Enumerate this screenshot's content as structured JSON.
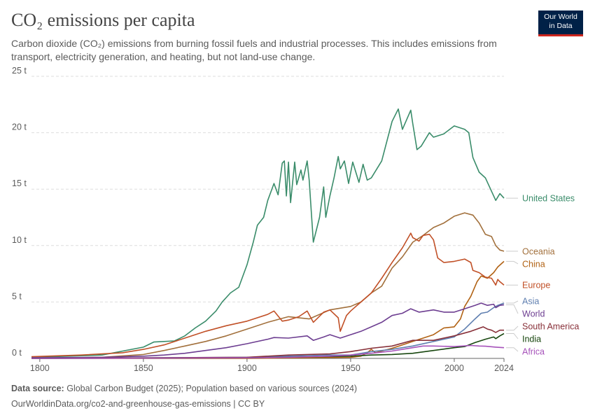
{
  "title": "CO₂ emissions per capita",
  "subtitle": "Carbon dioxide (CO₂) emissions from burning fossil fuels and industrial processes. This includes emissions from transport, electricity generation, and heating, but not land-use change.",
  "logo": {
    "line1": "Our World",
    "line2": "in Data"
  },
  "footer": {
    "source_label": "Data source:",
    "source_text": "Global Carbon Budget (2025); Population based on various sources (2024)",
    "url": "OurWorldinData.org/co2-and-greenhouse-gas-emissions | CC BY"
  },
  "colors": {
    "grid": "#dddddd",
    "text": "#5b5b5b",
    "axis": "#666666"
  },
  "chart_data": {
    "type": "line",
    "title": "CO₂ emissions per capita",
    "xlabel": "",
    "ylabel": "",
    "xlim": [
      1796,
      2024
    ],
    "ylim": [
      0,
      25
    ],
    "x_ticks": [
      1800,
      1850,
      1900,
      1950,
      2000,
      2024
    ],
    "x_tick_labels": [
      "1800",
      "1850",
      "1900",
      "1950",
      "2000",
      "2024"
    ],
    "y_ticks": [
      0,
      5,
      10,
      15,
      20,
      25
    ],
    "y_tick_labels": [
      "0 t",
      "5 t",
      "10 t",
      "15 t",
      "20 t",
      "25 t"
    ],
    "grid": true,
    "series": [
      {
        "name": "United States",
        "color": "#3a8c6a",
        "points": [
          [
            1796,
            0.1
          ],
          [
            1830,
            0.3
          ],
          [
            1850,
            1.0
          ],
          [
            1855,
            1.45
          ],
          [
            1860,
            1.5
          ],
          [
            1865,
            1.55
          ],
          [
            1870,
            2.0
          ],
          [
            1875,
            2.7
          ],
          [
            1880,
            3.3
          ],
          [
            1885,
            4.2
          ],
          [
            1888,
            5.0
          ],
          [
            1892,
            5.8
          ],
          [
            1896,
            6.3
          ],
          [
            1900,
            8.3
          ],
          [
            1903,
            10.3
          ],
          [
            1905,
            11.8
          ],
          [
            1908,
            12.5
          ],
          [
            1910,
            14.0
          ],
          [
            1913,
            15.5
          ],
          [
            1915,
            14.5
          ],
          [
            1917,
            17.3
          ],
          [
            1918,
            17.5
          ],
          [
            1919,
            14.4
          ],
          [
            1920,
            17.4
          ],
          [
            1921,
            13.8
          ],
          [
            1923,
            17.4
          ],
          [
            1924,
            15.4
          ],
          [
            1926,
            16.7
          ],
          [
            1927,
            15.8
          ],
          [
            1929,
            17.5
          ],
          [
            1930,
            15.8
          ],
          [
            1932,
            10.3
          ],
          [
            1935,
            12.5
          ],
          [
            1937,
            15.2
          ],
          [
            1938,
            12.5
          ],
          [
            1940,
            14.4
          ],
          [
            1942,
            16.0
          ],
          [
            1944,
            17.9
          ],
          [
            1945,
            16.8
          ],
          [
            1947,
            17.5
          ],
          [
            1949,
            15.5
          ],
          [
            1951,
            17.4
          ],
          [
            1954,
            15.6
          ],
          [
            1956,
            17.2
          ],
          [
            1958,
            15.8
          ],
          [
            1960,
            16.0
          ],
          [
            1965,
            17.5
          ],
          [
            1970,
            21.0
          ],
          [
            1973,
            22.1
          ],
          [
            1975,
            20.3
          ],
          [
            1979,
            22.0
          ],
          [
            1980,
            20.8
          ],
          [
            1982,
            18.5
          ],
          [
            1984,
            18.8
          ],
          [
            1988,
            20.0
          ],
          [
            1990,
            19.6
          ],
          [
            1995,
            19.9
          ],
          [
            2000,
            20.6
          ],
          [
            2005,
            20.3
          ],
          [
            2007,
            20.0
          ],
          [
            2009,
            17.8
          ],
          [
            2012,
            16.5
          ],
          [
            2015,
            16.0
          ],
          [
            2020,
            14.0
          ],
          [
            2022,
            14.6
          ],
          [
            2024,
            14.2
          ]
        ]
      },
      {
        "name": "Oceania",
        "color": "#a2703c",
        "points": [
          [
            1796,
            0.0
          ],
          [
            1830,
            0.1
          ],
          [
            1850,
            0.35
          ],
          [
            1860,
            0.7
          ],
          [
            1870,
            1.1
          ],
          [
            1880,
            1.5
          ],
          [
            1890,
            2.0
          ],
          [
            1900,
            2.6
          ],
          [
            1910,
            3.2
          ],
          [
            1920,
            3.7
          ],
          [
            1930,
            3.5
          ],
          [
            1940,
            4.3
          ],
          [
            1950,
            4.6
          ],
          [
            1955,
            5.0
          ],
          [
            1960,
            5.8
          ],
          [
            1965,
            6.4
          ],
          [
            1970,
            8.0
          ],
          [
            1975,
            9.0
          ],
          [
            1980,
            10.3
          ],
          [
            1985,
            10.9
          ],
          [
            1990,
            11.6
          ],
          [
            1995,
            12.0
          ],
          [
            2000,
            12.6
          ],
          [
            2005,
            12.9
          ],
          [
            2009,
            12.7
          ],
          [
            2012,
            12.0
          ],
          [
            2015,
            11.0
          ],
          [
            2018,
            10.8
          ],
          [
            2020,
            10.0
          ],
          [
            2022,
            9.6
          ],
          [
            2024,
            9.5
          ]
        ]
      },
      {
        "name": "China",
        "color": "#b16214",
        "points": [
          [
            1796,
            0.0
          ],
          [
            1900,
            0.0
          ],
          [
            1950,
            0.1
          ],
          [
            1955,
            0.2
          ],
          [
            1958,
            0.5
          ],
          [
            1960,
            0.8
          ],
          [
            1962,
            0.5
          ],
          [
            1970,
            0.9
          ],
          [
            1975,
            1.2
          ],
          [
            1980,
            1.5
          ],
          [
            1985,
            1.8
          ],
          [
            1990,
            2.1
          ],
          [
            1995,
            2.7
          ],
          [
            2000,
            2.8
          ],
          [
            2003,
            3.5
          ],
          [
            2005,
            4.6
          ],
          [
            2008,
            5.5
          ],
          [
            2011,
            6.8
          ],
          [
            2013,
            7.3
          ],
          [
            2016,
            7.1
          ],
          [
            2019,
            7.6
          ],
          [
            2021,
            8.1
          ],
          [
            2024,
            8.6
          ]
        ]
      },
      {
        "name": "Europe",
        "color": "#c15027",
        "points": [
          [
            1796,
            0.15
          ],
          [
            1820,
            0.3
          ],
          [
            1840,
            0.5
          ],
          [
            1850,
            0.8
          ],
          [
            1860,
            1.2
          ],
          [
            1870,
            1.8
          ],
          [
            1880,
            2.4
          ],
          [
            1890,
            2.9
          ],
          [
            1900,
            3.3
          ],
          [
            1910,
            3.9
          ],
          [
            1913,
            4.2
          ],
          [
            1917,
            3.3
          ],
          [
            1920,
            3.4
          ],
          [
            1925,
            3.7
          ],
          [
            1929,
            4.2
          ],
          [
            1932,
            3.2
          ],
          [
            1937,
            4.1
          ],
          [
            1940,
            4.3
          ],
          [
            1944,
            3.6
          ],
          [
            1945,
            2.4
          ],
          [
            1948,
            3.8
          ],
          [
            1950,
            4.2
          ],
          [
            1955,
            5.0
          ],
          [
            1960,
            5.8
          ],
          [
            1965,
            7.1
          ],
          [
            1970,
            8.5
          ],
          [
            1975,
            9.8
          ],
          [
            1979,
            11.1
          ],
          [
            1980,
            10.7
          ],
          [
            1983,
            10.4
          ],
          [
            1985,
            10.9
          ],
          [
            1988,
            11.0
          ],
          [
            1990,
            10.5
          ],
          [
            1992,
            8.9
          ],
          [
            1995,
            8.5
          ],
          [
            2000,
            8.6
          ],
          [
            2005,
            8.8
          ],
          [
            2008,
            8.5
          ],
          [
            2009,
            7.8
          ],
          [
            2012,
            7.6
          ],
          [
            2015,
            7.2
          ],
          [
            2018,
            7.1
          ],
          [
            2020,
            6.5
          ],
          [
            2021,
            7.0
          ],
          [
            2022,
            6.8
          ],
          [
            2024,
            6.5
          ]
        ]
      },
      {
        "name": "Asia",
        "color": "#5f7fb0",
        "points": [
          [
            1796,
            0.0
          ],
          [
            1900,
            0.1
          ],
          [
            1920,
            0.2
          ],
          [
            1940,
            0.3
          ],
          [
            1950,
            0.3
          ],
          [
            1960,
            0.6
          ],
          [
            1970,
            0.8
          ],
          [
            1980,
            1.1
          ],
          [
            1990,
            1.5
          ],
          [
            2000,
            1.9
          ],
          [
            2005,
            2.6
          ],
          [
            2010,
            3.5
          ],
          [
            2013,
            4.0
          ],
          [
            2016,
            4.1
          ],
          [
            2019,
            4.5
          ],
          [
            2021,
            4.7
          ],
          [
            2024,
            4.9
          ]
        ]
      },
      {
        "name": "World",
        "color": "#6d3e91",
        "points": [
          [
            1796,
            0.06
          ],
          [
            1830,
            0.1
          ],
          [
            1850,
            0.2
          ],
          [
            1860,
            0.3
          ],
          [
            1870,
            0.45
          ],
          [
            1880,
            0.7
          ],
          [
            1890,
            0.95
          ],
          [
            1900,
            1.3
          ],
          [
            1910,
            1.7
          ],
          [
            1913,
            1.85
          ],
          [
            1920,
            1.8
          ],
          [
            1929,
            2.0
          ],
          [
            1932,
            1.6
          ],
          [
            1937,
            1.9
          ],
          [
            1940,
            2.1
          ],
          [
            1945,
            1.8
          ],
          [
            1950,
            2.1
          ],
          [
            1955,
            2.4
          ],
          [
            1960,
            2.8
          ],
          [
            1965,
            3.2
          ],
          [
            1970,
            3.8
          ],
          [
            1975,
            4.0
          ],
          [
            1979,
            4.4
          ],
          [
            1983,
            4.1
          ],
          [
            1990,
            4.3
          ],
          [
            1995,
            4.1
          ],
          [
            2000,
            4.1
          ],
          [
            2005,
            4.4
          ],
          [
            2010,
            4.7
          ],
          [
            2013,
            4.9
          ],
          [
            2016,
            4.7
          ],
          [
            2019,
            4.8
          ],
          [
            2020,
            4.5
          ],
          [
            2022,
            4.7
          ],
          [
            2024,
            4.75
          ]
        ]
      },
      {
        "name": "South America",
        "color": "#883039",
        "points": [
          [
            1796,
            0.0
          ],
          [
            1900,
            0.1
          ],
          [
            1920,
            0.3
          ],
          [
            1940,
            0.4
          ],
          [
            1950,
            0.6
          ],
          [
            1960,
            0.9
          ],
          [
            1970,
            1.1
          ],
          [
            1980,
            1.6
          ],
          [
            1990,
            1.6
          ],
          [
            2000,
            2.0
          ],
          [
            2008,
            2.4
          ],
          [
            2014,
            2.8
          ],
          [
            2016,
            2.6
          ],
          [
            2018,
            2.5
          ],
          [
            2020,
            2.3
          ],
          [
            2022,
            2.5
          ],
          [
            2024,
            2.5
          ]
        ]
      },
      {
        "name": "India",
        "color": "#18470f",
        "points": [
          [
            1796,
            0.0
          ],
          [
            1900,
            0.05
          ],
          [
            1950,
            0.2
          ],
          [
            1960,
            0.3
          ],
          [
            1970,
            0.35
          ],
          [
            1980,
            0.45
          ],
          [
            1990,
            0.7
          ],
          [
            2000,
            0.95
          ],
          [
            2005,
            1.05
          ],
          [
            2010,
            1.4
          ],
          [
            2015,
            1.7
          ],
          [
            2019,
            1.9
          ],
          [
            2020,
            1.75
          ],
          [
            2022,
            2.0
          ],
          [
            2024,
            2.2
          ]
        ]
      },
      {
        "name": "Africa",
        "color": "#a652ba",
        "points": [
          [
            1796,
            0.0
          ],
          [
            1900,
            0.05
          ],
          [
            1920,
            0.1
          ],
          [
            1940,
            0.2
          ],
          [
            1950,
            0.3
          ],
          [
            1960,
            0.45
          ],
          [
            1970,
            0.65
          ],
          [
            1980,
            0.95
          ],
          [
            1985,
            1.1
          ],
          [
            1990,
            1.1
          ],
          [
            2000,
            1.05
          ],
          [
            2008,
            1.15
          ],
          [
            2012,
            1.1
          ],
          [
            2015,
            1.08
          ],
          [
            2020,
            1.0
          ],
          [
            2024,
            0.95
          ]
        ]
      }
    ]
  }
}
